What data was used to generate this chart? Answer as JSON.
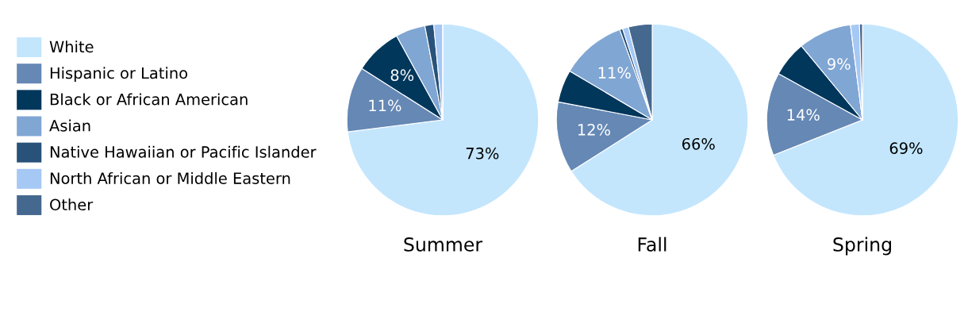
{
  "chart_data": [
    {
      "type": "pie",
      "title": "Summer",
      "legend": "left",
      "categories": [
        "White",
        "Hispanic or Latino",
        "Black or African American",
        "Asian",
        "Native Hawaiian or Pacific Islander",
        "North African or Middle Eastern",
        "Other"
      ],
      "values": [
        73,
        11,
        8,
        5,
        1.5,
        1.5,
        0
      ],
      "value_labels": [
        "73%",
        "11%",
        "8%",
        null,
        null,
        null,
        null
      ],
      "colors": [
        "#c3e6fd",
        "#6588b5",
        "#02375c",
        "#80a6d3",
        "#28527a",
        "#a6c8f5",
        "#45688f"
      ]
    },
    {
      "type": "pie",
      "title": "Fall",
      "values": [
        66,
        12,
        5.5,
        11,
        0.5,
        1,
        4
      ],
      "value_labels": [
        "66%",
        "12%",
        null,
        "11%",
        null,
        null,
        null
      ],
      "colors": [
        "#c3e6fd",
        "#6588b5",
        "#02375c",
        "#80a6d3",
        "#28527a",
        "#a6c8f5",
        "#45688f"
      ]
    },
    {
      "type": "pie",
      "title": "Spring",
      "values": [
        69,
        14,
        6,
        9,
        0,
        1.5,
        0.5
      ],
      "value_labels": [
        "69%",
        "14%",
        null,
        "9%",
        null,
        null,
        null
      ],
      "colors": [
        "#c3e6fd",
        "#6588b5",
        "#02375c",
        "#80a6d3",
        "#28527a",
        "#a6c8f5",
        "#45688f"
      ]
    }
  ]
}
